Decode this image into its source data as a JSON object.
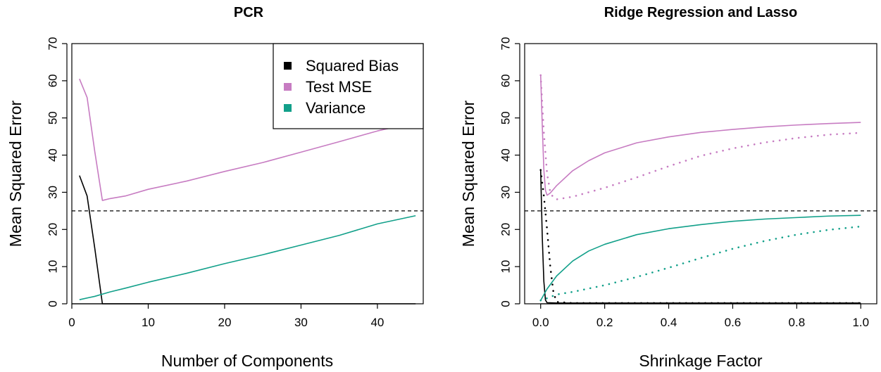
{
  "colors": {
    "squared_bias": "#000000",
    "test_mse": "#c77cc2",
    "variance": "#12a08a",
    "reference": "#000000"
  },
  "chart_data": [
    {
      "id": "pcr",
      "type": "line",
      "title": "PCR",
      "xlabel": "Number of Components",
      "ylabel": "Mean Squared Error",
      "xlim": [
        0,
        46
      ],
      "ylim": [
        0,
        70
      ],
      "xticks": [
        0,
        10,
        20,
        30,
        40
      ],
      "yticks": [
        0,
        10,
        20,
        30,
        40,
        50,
        60,
        70
      ],
      "legend": {
        "position": "top-right",
        "entries": [
          {
            "label": "Squared Bias",
            "color": "#000000"
          },
          {
            "label": "Test MSE",
            "color": "#c77cc2"
          },
          {
            "label": "Variance",
            "color": "#12a08a"
          }
        ]
      },
      "reference_line": {
        "y": 25,
        "style": "dashed"
      },
      "series": [
        {
          "name": "Squared Bias",
          "color": "#000000",
          "style": "solid",
          "x": [
            1,
            2,
            3,
            4,
            5,
            10,
            15,
            20,
            25,
            30,
            35,
            40,
            45
          ],
          "y": [
            34.5,
            29,
            15,
            0,
            0,
            0,
            0,
            0,
            0,
            0,
            0,
            0,
            0
          ]
        },
        {
          "name": "Test MSE",
          "color": "#c77cc2",
          "style": "solid",
          "x": [
            1,
            2,
            3,
            4,
            5,
            7,
            10,
            15,
            20,
            25,
            30,
            35,
            40,
            45
          ],
          "y": [
            60.5,
            55.5,
            41,
            27.8,
            28.3,
            29,
            30.8,
            33,
            35.6,
            38,
            40.8,
            43.6,
            46.5,
            48.8
          ]
        },
        {
          "name": "Variance",
          "color": "#12a08a",
          "style": "solid",
          "x": [
            1,
            3,
            5,
            7,
            10,
            15,
            20,
            25,
            30,
            35,
            40,
            45
          ],
          "y": [
            1.1,
            2,
            3.2,
            4.2,
            5.8,
            8.2,
            10.8,
            13.2,
            15.8,
            18.4,
            21.5,
            23.7
          ]
        }
      ]
    },
    {
      "id": "ridge-lasso",
      "type": "line",
      "title": "Ridge Regression and Lasso",
      "xlabel": "Shrinkage Factor",
      "ylabel": "Mean Squared Error",
      "xlim": [
        -0.05,
        1.05
      ],
      "ylim": [
        0,
        70
      ],
      "xticks": [
        "0.0",
        "0.2",
        "0.4",
        "0.6",
        "0.8",
        "1.0"
      ],
      "yticks": [
        0,
        10,
        20,
        30,
        40,
        50,
        60,
        70
      ],
      "reference_line": {
        "y": 25,
        "style": "dashed"
      },
      "series": [
        {
          "name": "Squared Bias",
          "color": "#000000",
          "style": "solid",
          "x": [
            0,
            0.005,
            0.01,
            0.015,
            0.02,
            0.05,
            0.1,
            0.3,
            0.5,
            0.7,
            1.0
          ],
          "y": [
            36,
            18,
            6,
            1,
            0.3,
            0.2,
            0.2,
            0.2,
            0.2,
            0.2,
            0.2
          ]
        },
        {
          "name": "Squared Bias",
          "color": "#000000",
          "style": "dotted",
          "x": [
            0,
            0.01,
            0.02,
            0.03,
            0.04,
            0.05,
            0.1,
            0.3,
            0.5,
            0.7,
            1.0
          ],
          "y": [
            36,
            29,
            20,
            10,
            3,
            0.5,
            0.2,
            0.2,
            0.2,
            0.2,
            0.2
          ]
        },
        {
          "name": "Test MSE",
          "color": "#c77cc2",
          "style": "solid",
          "x": [
            0,
            0.005,
            0.01,
            0.015,
            0.02,
            0.03,
            0.05,
            0.1,
            0.15,
            0.2,
            0.3,
            0.4,
            0.5,
            0.6,
            0.7,
            0.8,
            0.9,
            1.0
          ],
          "y": [
            61.5,
            48,
            36,
            30.5,
            29.2,
            29.8,
            31.8,
            35.8,
            38.5,
            40.6,
            43.3,
            44.9,
            46.1,
            46.9,
            47.6,
            48.1,
            48.5,
            48.8
          ]
        },
        {
          "name": "Test MSE",
          "color": "#c77cc2",
          "style": "dotted",
          "x": [
            0,
            0.01,
            0.02,
            0.03,
            0.04,
            0.05,
            0.1,
            0.2,
            0.3,
            0.4,
            0.5,
            0.6,
            0.7,
            0.8,
            0.9,
            1.0
          ],
          "y": [
            61.5,
            46,
            35,
            30,
            28.5,
            28.1,
            28.8,
            31.2,
            34,
            37,
            39.8,
            41.8,
            43.4,
            44.6,
            45.5,
            46
          ]
        },
        {
          "name": "Variance",
          "color": "#12a08a",
          "style": "solid",
          "x": [
            0,
            0.02,
            0.05,
            0.1,
            0.15,
            0.2,
            0.3,
            0.4,
            0.5,
            0.6,
            0.7,
            0.8,
            0.9,
            1.0
          ],
          "y": [
            0.9,
            4,
            7.5,
            11.5,
            14.2,
            16,
            18.6,
            20.2,
            21.3,
            22.2,
            22.8,
            23.2,
            23.6,
            23.8
          ]
        },
        {
          "name": "Variance",
          "color": "#12a08a",
          "style": "dotted",
          "x": [
            0,
            0.02,
            0.05,
            0.1,
            0.2,
            0.3,
            0.4,
            0.5,
            0.6,
            0.7,
            0.8,
            0.9,
            1.0
          ],
          "y": [
            0.9,
            1.5,
            2.5,
            3.2,
            5,
            7.2,
            9.7,
            12.3,
            14.8,
            16.9,
            18.6,
            19.9,
            20.8
          ]
        }
      ]
    }
  ]
}
